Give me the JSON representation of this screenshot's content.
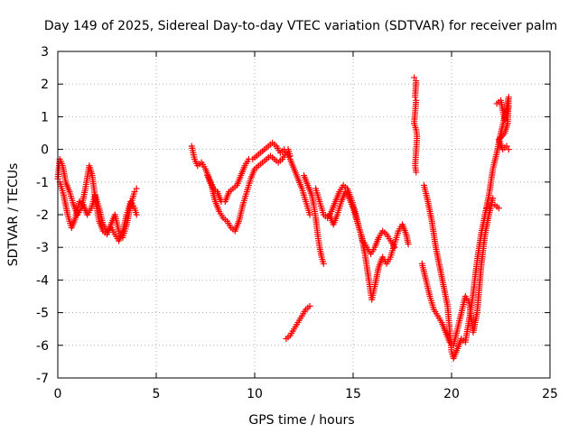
{
  "chart_data": {
    "type": "scatter",
    "title": "Day 149 of 2025, Sidereal Day-to-day VTEC variation (SDTVAR) for receiver palm",
    "xlabel": "GPS time / hours",
    "ylabel": "SDTVAR / TECUs",
    "xlim": [
      0,
      25
    ],
    "ylim": [
      -7,
      3
    ],
    "xticks": [
      0,
      5,
      10,
      15,
      20,
      25
    ],
    "yticks": [
      -7,
      -6,
      -5,
      -4,
      -3,
      -2,
      -1,
      0,
      1,
      2,
      3
    ],
    "grid": true,
    "marker": "+",
    "color": "#ff0000",
    "series": [
      {
        "segments": [
          [
            [
              0.0,
              -0.9
            ],
            [
              0.1,
              -0.3
            ],
            [
              0.25,
              -0.5
            ],
            [
              0.4,
              -1.0
            ],
            [
              0.6,
              -1.3
            ],
            [
              0.8,
              -1.7
            ],
            [
              1.0,
              -2.0
            ],
            [
              1.2,
              -1.8
            ],
            [
              1.4,
              -1.2
            ],
            [
              1.6,
              -0.5
            ],
            [
              1.75,
              -0.8
            ],
            [
              1.9,
              -1.5
            ],
            [
              2.1,
              -2.2
            ],
            [
              2.3,
              -2.5
            ],
            [
              2.5,
              -2.6
            ],
            [
              2.7,
              -2.3
            ],
            [
              2.9,
              -2.0
            ],
            [
              3.1,
              -2.5
            ],
            [
              3.3,
              -2.7
            ],
            [
              3.5,
              -2.3
            ],
            [
              3.7,
              -1.7
            ],
            [
              3.9,
              -1.3
            ],
            [
              4.0,
              -1.2
            ]
          ],
          [
            [
              0.1,
              -1.0
            ],
            [
              0.3,
              -1.4
            ],
            [
              0.5,
              -2.0
            ],
            [
              0.7,
              -2.4
            ],
            [
              0.9,
              -2.1
            ],
            [
              1.1,
              -1.6
            ],
            [
              1.3,
              -1.7
            ],
            [
              1.5,
              -2.0
            ],
            [
              1.7,
              -1.8
            ],
            [
              1.9,
              -1.4
            ],
            [
              2.1,
              -1.8
            ],
            [
              2.3,
              -2.3
            ],
            [
              2.5,
              -2.5
            ],
            [
              2.7,
              -2.4
            ],
            [
              2.9,
              -2.6
            ],
            [
              3.1,
              -2.8
            ],
            [
              3.3,
              -2.5
            ],
            [
              3.5,
              -2.0
            ],
            [
              3.7,
              -1.6
            ],
            [
              3.9,
              -1.8
            ],
            [
              4.0,
              -2.0
            ]
          ],
          [
            [
              6.8,
              0.1
            ],
            [
              6.95,
              -0.3
            ],
            [
              7.1,
              -0.5
            ],
            [
              7.3,
              -0.4
            ],
            [
              7.5,
              -0.6
            ],
            [
              7.7,
              -0.9
            ],
            [
              7.9,
              -1.2
            ],
            [
              8.1,
              -1.3
            ],
            [
              8.3,
              -1.6
            ],
            [
              8.5,
              -1.6
            ],
            [
              8.7,
              -1.3
            ],
            [
              8.9,
              -1.2
            ],
            [
              9.1,
              -1.1
            ],
            [
              9.3,
              -0.8
            ],
            [
              9.5,
              -0.5
            ],
            [
              9.7,
              -0.3
            ],
            [
              9.9,
              -0.3
            ],
            [
              10.1,
              -0.2
            ],
            [
              10.3,
              -0.1
            ],
            [
              10.5,
              0.0
            ],
            [
              10.7,
              0.1
            ],
            [
              10.9,
              0.2
            ],
            [
              11.1,
              0.1
            ],
            [
              11.3,
              -0.1
            ],
            [
              11.5,
              0.0
            ],
            [
              11.7,
              0.0
            ],
            [
              11.8,
              -0.2
            ]
          ],
          [
            [
              7.6,
              -0.8
            ],
            [
              7.8,
              -1.1
            ],
            [
              8.0,
              -1.6
            ],
            [
              8.2,
              -1.9
            ],
            [
              8.4,
              -2.1
            ],
            [
              8.6,
              -2.2
            ],
            [
              8.8,
              -2.4
            ],
            [
              9.0,
              -2.5
            ],
            [
              9.2,
              -2.2
            ],
            [
              9.4,
              -1.7
            ],
            [
              9.6,
              -1.3
            ],
            [
              9.8,
              -0.9
            ],
            [
              10.0,
              -0.6
            ],
            [
              10.2,
              -0.5
            ],
            [
              10.4,
              -0.4
            ],
            [
              10.6,
              -0.3
            ],
            [
              10.8,
              -0.2
            ],
            [
              11.0,
              -0.3
            ],
            [
              11.2,
              -0.4
            ],
            [
              11.4,
              -0.3
            ],
            [
              11.6,
              -0.1
            ],
            [
              11.8,
              -0.3
            ],
            [
              12.0,
              -0.6
            ],
            [
              12.2,
              -0.9
            ],
            [
              12.4,
              -1.2
            ],
            [
              12.6,
              -1.6
            ],
            [
              12.8,
              -2.0
            ]
          ],
          [
            [
              11.6,
              -5.8
            ],
            [
              11.8,
              -5.7
            ],
            [
              12.0,
              -5.5
            ],
            [
              12.2,
              -5.3
            ],
            [
              12.4,
              -5.1
            ],
            [
              12.6,
              -4.9
            ],
            [
              12.8,
              -4.8
            ]
          ],
          [
            [
              12.5,
              -0.8
            ],
            [
              12.7,
              -1.1
            ],
            [
              12.9,
              -1.4
            ],
            [
              13.0,
              -1.7
            ],
            [
              13.1,
              -2.1
            ],
            [
              13.2,
              -2.6
            ],
            [
              13.3,
              -3.0
            ],
            [
              13.4,
              -3.3
            ],
            [
              13.5,
              -3.5
            ]
          ],
          [
            [
              13.1,
              -1.2
            ],
            [
              13.3,
              -1.6
            ],
            [
              13.5,
              -2.0
            ],
            [
              13.7,
              -2.1
            ],
            [
              13.9,
              -1.9
            ],
            [
              14.1,
              -1.6
            ],
            [
              14.3,
              -1.3
            ],
            [
              14.5,
              -1.1
            ],
            [
              14.7,
              -1.2
            ],
            [
              14.9,
              -1.5
            ],
            [
              15.1,
              -1.9
            ],
            [
              15.3,
              -2.4
            ],
            [
              15.5,
              -2.8
            ],
            [
              15.7,
              -3.0
            ],
            [
              15.9,
              -3.2
            ],
            [
              16.1,
              -3.0
            ],
            [
              16.3,
              -2.7
            ],
            [
              16.5,
              -2.5
            ],
            [
              16.7,
              -2.6
            ],
            [
              16.9,
              -2.8
            ],
            [
              17.1,
              -3.0
            ]
          ],
          [
            [
              13.8,
              -2.0
            ],
            [
              14.0,
              -2.3
            ],
            [
              14.2,
              -2.0
            ],
            [
              14.4,
              -1.6
            ],
            [
              14.6,
              -1.3
            ],
            [
              14.8,
              -1.5
            ],
            [
              15.0,
              -1.8
            ],
            [
              15.2,
              -2.2
            ],
            [
              15.4,
              -2.6
            ],
            [
              15.6,
              -3.2
            ],
            [
              15.8,
              -4.0
            ],
            [
              15.95,
              -4.6
            ],
            [
              16.1,
              -4.2
            ],
            [
              16.3,
              -3.6
            ],
            [
              16.5,
              -3.3
            ],
            [
              16.7,
              -3.5
            ],
            [
              16.9,
              -3.3
            ],
            [
              17.1,
              -2.9
            ],
            [
              17.3,
              -2.5
            ],
            [
              17.5,
              -2.3
            ],
            [
              17.7,
              -2.6
            ],
            [
              17.8,
              -2.9
            ]
          ],
          [
            [
              18.1,
              2.2
            ],
            [
              18.2,
              2.1
            ],
            [
              18.15,
              1.6
            ],
            [
              18.2,
              1.5
            ],
            [
              18.1,
              0.8
            ],
            [
              18.2,
              0.6
            ],
            [
              18.25,
              0.4
            ],
            [
              18.15,
              -0.5
            ],
            [
              18.2,
              -0.7
            ]
          ],
          [
            [
              18.6,
              -1.1
            ],
            [
              18.8,
              -1.6
            ],
            [
              19.0,
              -2.2
            ],
            [
              19.2,
              -3.0
            ],
            [
              19.4,
              -3.6
            ],
            [
              19.6,
              -4.2
            ],
            [
              19.8,
              -4.8
            ],
            [
              19.9,
              -5.5
            ],
            [
              20.0,
              -6.2
            ],
            [
              20.1,
              -6.4
            ],
            [
              20.3,
              -6.1
            ],
            [
              20.5,
              -5.8
            ],
            [
              20.7,
              -5.9
            ],
            [
              20.9,
              -5.2
            ],
            [
              21.1,
              -4.4
            ],
            [
              21.3,
              -3.4
            ],
            [
              21.5,
              -2.6
            ],
            [
              21.7,
              -2.0
            ],
            [
              21.9,
              -1.4
            ],
            [
              22.1,
              -0.6
            ],
            [
              22.3,
              -0.1
            ],
            [
              22.5,
              0.5
            ],
            [
              22.7,
              1.0
            ],
            [
              22.9,
              1.3
            ]
          ],
          [
            [
              18.5,
              -3.5
            ],
            [
              18.7,
              -4.0
            ],
            [
              18.9,
              -4.5
            ],
            [
              19.1,
              -4.9
            ],
            [
              19.3,
              -5.1
            ],
            [
              19.5,
              -5.3
            ],
            [
              19.7,
              -5.6
            ],
            [
              19.9,
              -5.9
            ],
            [
              20.1,
              -6.0
            ],
            [
              20.3,
              -5.5
            ],
            [
              20.5,
              -5.0
            ],
            [
              20.7,
              -4.5
            ],
            [
              20.9,
              -4.7
            ],
            [
              21.1,
              -5.6
            ],
            [
              21.3,
              -5.0
            ],
            [
              21.5,
              -3.6
            ],
            [
              21.7,
              -2.6
            ],
            [
              21.9,
              -2.0
            ],
            [
              22.1,
              -1.5
            ]
          ],
          [
            [
              22.3,
              1.4
            ],
            [
              22.5,
              1.5
            ],
            [
              22.6,
              1.2
            ],
            [
              22.7,
              0.9
            ],
            [
              22.8,
              1.3
            ],
            [
              22.9,
              1.6
            ],
            [
              22.85,
              0.8
            ],
            [
              22.7,
              0.5
            ],
            [
              22.4,
              0.3
            ],
            [
              22.6,
              0.0
            ],
            [
              22.8,
              0.1
            ],
            [
              22.9,
              0.0
            ]
          ],
          [
            [
              21.8,
              -1.8
            ],
            [
              22.0,
              -1.7
            ],
            [
              22.2,
              -1.7
            ],
            [
              22.4,
              -1.8
            ]
          ]
        ]
      }
    ]
  }
}
